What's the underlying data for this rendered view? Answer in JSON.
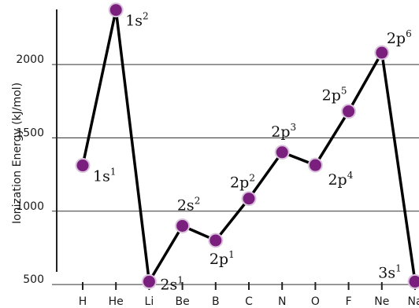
{
  "chart_data": {
    "type": "line",
    "title": "",
    "ylabel": "Ionization Energy (kJ/mol)",
    "xlabel": "",
    "categories": [
      "H",
      "He",
      "Li",
      "Be",
      "B",
      "C",
      "N",
      "O",
      "F",
      "Ne",
      "Na"
    ],
    "ylim": [
      340,
      2440
    ],
    "yticks": [
      500,
      1000,
      1500,
      2000
    ],
    "grid": true,
    "legend": "none",
    "series": [
      {
        "values": [
          1312,
          2372,
          520,
          900,
          801,
          1086,
          1402,
          1314,
          1681,
          2081,
          520
        ],
        "labels": [
          {
            "base": "1s",
            "sup": "1"
          },
          {
            "base": "1s",
            "sup": "2"
          },
          {
            "base": "2s",
            "sup": "1"
          },
          {
            "base": "2s",
            "sup": "2"
          },
          {
            "base": "2p",
            "sup": "1"
          },
          {
            "base": "2p",
            "sup": "2"
          },
          {
            "base": "2p",
            "sup": "3"
          },
          {
            "base": "2p",
            "sup": "4"
          },
          {
            "base": "2p",
            "sup": "5"
          },
          {
            "base": "2p",
            "sup": "6"
          },
          {
            "base": "3s",
            "sup": "1"
          }
        ]
      }
    ],
    "line_continues_to": 600,
    "colors": {
      "line": "#000000",
      "marker": "#7b1f7e",
      "marker_halo": "#d9c4dc",
      "grid": "#333333",
      "axis": "#222222"
    }
  }
}
